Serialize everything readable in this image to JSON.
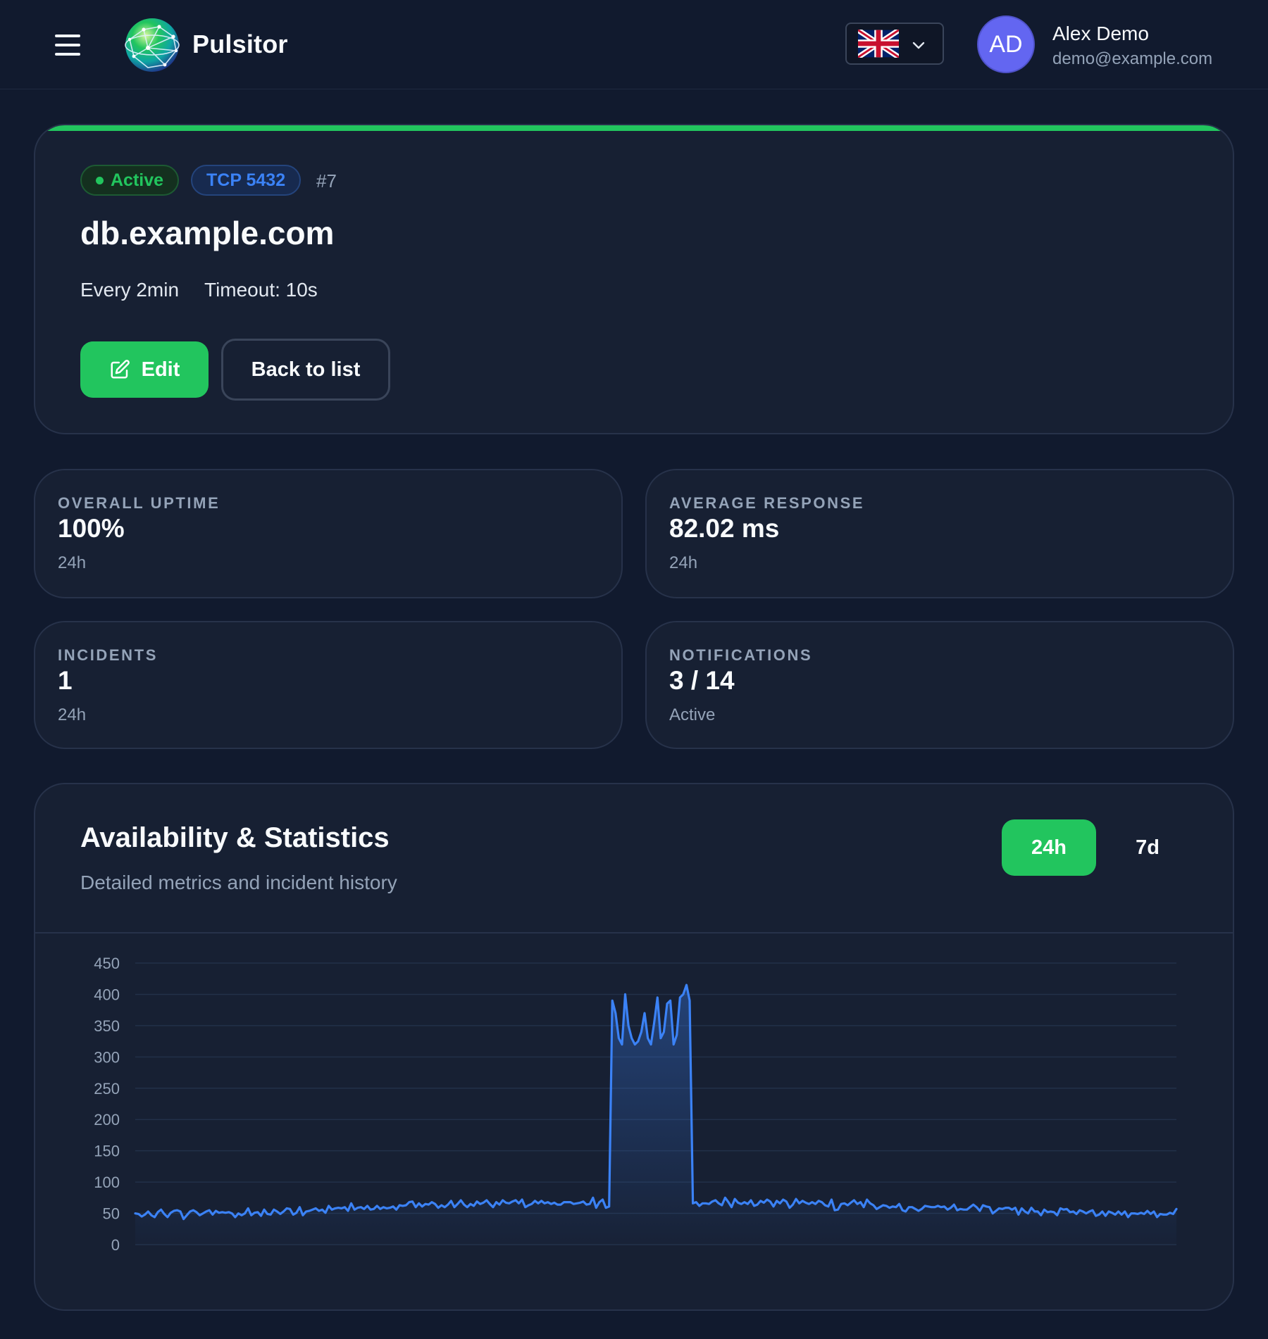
{
  "header": {
    "brand": "Pulsitor",
    "language": "en-GB",
    "user": {
      "initials": "AD",
      "name": "Alex Demo",
      "email": "demo@example.com"
    }
  },
  "monitor": {
    "status": "Active",
    "protocol": "TCP 5432",
    "id": "#7",
    "hostname": "db.example.com",
    "interval": "Every 2min",
    "timeout": "Timeout: 10s",
    "edit_label": "Edit",
    "back_label": "Back to list",
    "status_color": "#22c55e"
  },
  "stats": [
    {
      "label": "OVERALL UPTIME",
      "value": "100%",
      "sub": "24h"
    },
    {
      "label": "AVERAGE RESPONSE",
      "value": "82.02 ms",
      "sub": "24h"
    },
    {
      "label": "INCIDENTS",
      "value": "1",
      "sub": "24h"
    },
    {
      "label": "NOTIFICATIONS",
      "value": "3 / 14",
      "sub": "Active"
    }
  ],
  "availability": {
    "title": "Availability & Statistics",
    "subtitle": "Detailed metrics and incident history",
    "ranges": [
      "24h",
      "7d"
    ],
    "selected_range": "24h"
  },
  "chart_data": {
    "type": "area",
    "title": "",
    "xlabel": "",
    "ylabel": "",
    "ylim": [
      0,
      450
    ],
    "yticks": [
      450,
      400,
      350,
      300,
      250,
      200,
      150,
      100,
      50,
      0
    ],
    "grid": true,
    "line_color": "#3b82f6",
    "series": [
      {
        "values": [
          50,
          49,
          45,
          48,
          53,
          47,
          44,
          52,
          56,
          49,
          44,
          51,
          54,
          55,
          53,
          41,
          47,
          53,
          55,
          52,
          47,
          50,
          53,
          55,
          48,
          54,
          51,
          52,
          51,
          52,
          50,
          44,
          50,
          47,
          50,
          58,
          47,
          51,
          52,
          46,
          56,
          49,
          48,
          56,
          53,
          49,
          53,
          58,
          57,
          48,
          51,
          60,
          47,
          53,
          54,
          56,
          58,
          54,
          56,
          51,
          62,
          56,
          58,
          59,
          58,
          60,
          54,
          66,
          56,
          59,
          60,
          57,
          62,
          56,
          57,
          62,
          57,
          60,
          58,
          59,
          61,
          56,
          63,
          62,
          63,
          68,
          69,
          60,
          66,
          61,
          65,
          64,
          68,
          65,
          59,
          63,
          60,
          64,
          70,
          60,
          65,
          71,
          64,
          60,
          65,
          62,
          69,
          65,
          67,
          71,
          65,
          60,
          68,
          64,
          71,
          67,
          66,
          69,
          71,
          66,
          72,
          60,
          63,
          65,
          70,
          66,
          70,
          66,
          68,
          65,
          67,
          64,
          64,
          68,
          68,
          68,
          65,
          66,
          67,
          69,
          64,
          65,
          75,
          59,
          68,
          72,
          59,
          61,
          66,
          68,
          62,
          66,
          66,
          65,
          69,
          71,
          66,
          63,
          75,
          68,
          60,
          73,
          67,
          65,
          68,
          65,
          71,
          62,
          64,
          70,
          67,
          72,
          69,
          61,
          70,
          66,
          72,
          69,
          59,
          64,
          73,
          66,
          70,
          67,
          65,
          68,
          65,
          70,
          68,
          63,
          61,
          72,
          55,
          56,
          65,
          66,
          63,
          67,
          71,
          65,
          68,
          60,
          72,
          66,
          63,
          57,
          60,
          63,
          62,
          59,
          61,
          60,
          65,
          55,
          53,
          60,
          60,
          57,
          54,
          57,
          62,
          61,
          60,
          60,
          62,
          60,
          61,
          56,
          59,
          64,
          55,
          57,
          56,
          56,
          60,
          64,
          60,
          54,
          63,
          61,
          60,
          50,
          54,
          58,
          57,
          59,
          59,
          56,
          59,
          48,
          58,
          53,
          50,
          59,
          53,
          53,
          47,
          56,
          52,
          53,
          52,
          47,
          58,
          56,
          57,
          52,
          53,
          49,
          55,
          53,
          50,
          53,
          55,
          46,
          48,
          53,
          46,
          53,
          51,
          48,
          53,
          48,
          53,
          44,
          50,
          50,
          49,
          51,
          49,
          54,
          49,
          53,
          44,
          49,
          48,
          48,
          51,
          49,
          57
        ],
        "spike": {
          "start_index": 148,
          "end_index": 173,
          "values": [
            390,
            370,
            330,
            320,
            400,
            350,
            330,
            320,
            325,
            340,
            370,
            330,
            320,
            355,
            395,
            330,
            340,
            385,
            390,
            320,
            335,
            395,
            400,
            415,
            390
          ]
        }
      }
    ]
  }
}
